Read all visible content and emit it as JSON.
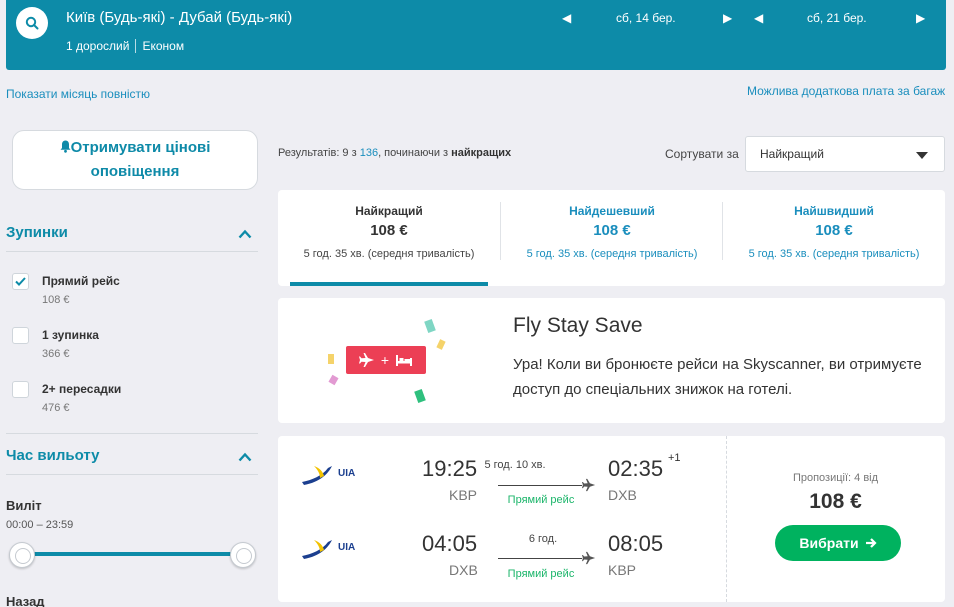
{
  "header": {
    "route": "Київ (Будь-які) - Дубай (Будь-які)",
    "passengers": "1 дорослий",
    "cabin": "Економ",
    "depart_date": "сб, 14 бер.",
    "return_date": "сб, 21 бер."
  },
  "links": {
    "show_month": "Показати місяць повністю",
    "baggage": "Можлива додаткова плата за багаж"
  },
  "alerts": {
    "line1": "Отримувати цінові",
    "line2": "оповіщення"
  },
  "filters": {
    "stops_title": "Зупинки",
    "options": [
      {
        "label": "Прямий рейс",
        "price": "108 €",
        "checked": true
      },
      {
        "label": "1 зупинка",
        "price": "366 €",
        "checked": false
      },
      {
        "label": "2+ пересадки",
        "price": "476 €",
        "checked": false
      }
    ],
    "time_title": "Час вильоту",
    "departure_label": "Виліт",
    "departure_range": "00:00 – 23:59",
    "return_label": "Назад"
  },
  "results": {
    "prefix": "Результатів: 9 з ",
    "total": "136",
    "middle": ", починаючи з ",
    "bold": "найкращих"
  },
  "sort": {
    "label": "Сортувати за",
    "value": "Найкращий"
  },
  "tabs": [
    {
      "name": "Найкращий",
      "price": "108 €",
      "duration": "5 год. 35 хв. (середня тривалість)"
    },
    {
      "name": "Найдешевший",
      "price": "108 €",
      "duration": "5 год. 35 хв. (середня тривалість)"
    },
    {
      "name": "Найшвидший",
      "price": "108 €",
      "duration": "5 год. 35 хв. (середня тривалість)"
    }
  ],
  "promo": {
    "title": "Fly Stay Save",
    "text": "Ура! Коли ви бронюєте рейси на Skyscanner, ви отримуєте доступ до спеціальних знижок на готелі.",
    "badge_plus": "+"
  },
  "flight": {
    "airline": "UIA",
    "outbound": {
      "dep_time": "19:25",
      "dep_code": "KBP",
      "duration": "5 год. 10 хв.",
      "stops": "Прямий рейс",
      "arr_time": "02:35",
      "arr_code": "DXB",
      "day_offset": "+1"
    },
    "inbound": {
      "dep_time": "04:05",
      "dep_code": "DXB",
      "duration": "6 год.",
      "stops": "Прямий рейс",
      "arr_time": "08:05",
      "arr_code": "KBP"
    },
    "offers": "Пропозиції: 4 від",
    "price": "108 €",
    "select_label": "Вибрати"
  },
  "colors": {
    "header": "#0d8ba8",
    "accent": "#1a8ebd",
    "green": "#00b25f",
    "promo_badge": "#ec3f55"
  }
}
